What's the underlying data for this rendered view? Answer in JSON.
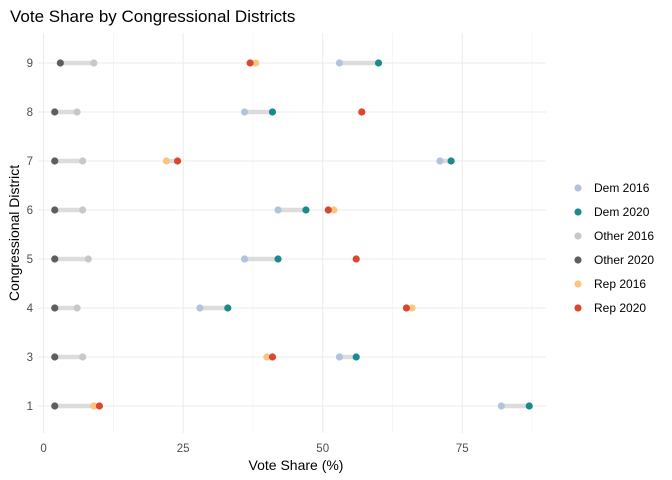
{
  "chart_data": {
    "type": "scatter",
    "subtype": "dumbbell",
    "title": "Vote Share by Congressional Districts",
    "xlabel": "Vote Share (%)",
    "ylabel": "Congressional District",
    "xlim": [
      -1,
      90
    ],
    "x_ticks": [
      0,
      25,
      50,
      75
    ],
    "categories": [
      "1",
      "3",
      "4",
      "5",
      "6",
      "7",
      "8",
      "9"
    ],
    "grid": true,
    "legend_position": "right",
    "segment_color": "#dcdcdc",
    "series": [
      {
        "name": "Dem 2016",
        "color": "#b3c3dd",
        "values": [
          82,
          53,
          28,
          36,
          42,
          71,
          36,
          53
        ]
      },
      {
        "name": "Dem 2020",
        "color": "#1b8a8c",
        "values": [
          87,
          56,
          33,
          42,
          47,
          73,
          41,
          60
        ]
      },
      {
        "name": "Other 2016",
        "color": "#c8c8c8",
        "values": [
          9,
          7,
          6,
          8,
          7,
          7,
          6,
          9
        ]
      },
      {
        "name": "Other 2020",
        "color": "#5e5e5e",
        "values": [
          2,
          2,
          2,
          2,
          2,
          2,
          2,
          3
        ]
      },
      {
        "name": "Rep 2016",
        "color": "#fdc381",
        "values": [
          9,
          40,
          66,
          56,
          52,
          22,
          57,
          38
        ]
      },
      {
        "name": "Rep 2020",
        "color": "#d9472f",
        "values": [
          10,
          41,
          65,
          56,
          51,
          24,
          57,
          37
        ]
      }
    ],
    "segments": [
      {
        "from": "Dem 2016",
        "to": "Dem 2020"
      },
      {
        "from": "Other 2016",
        "to": "Other 2020"
      },
      {
        "from": "Rep 2016",
        "to": "Rep 2020"
      }
    ]
  }
}
